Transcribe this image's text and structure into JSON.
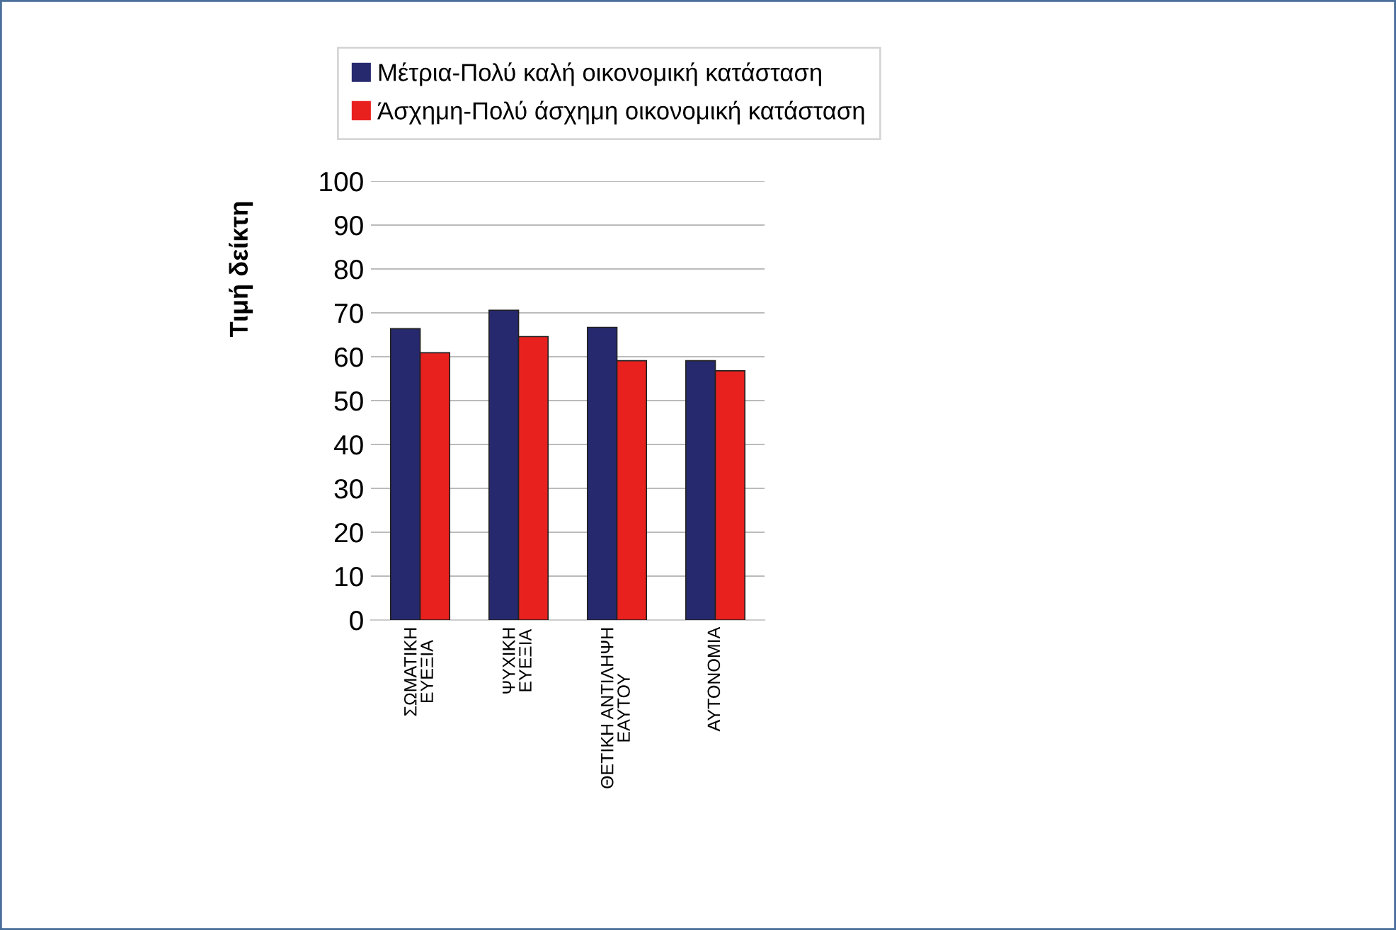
{
  "chart_data": {
    "type": "bar",
    "ylabel": "Τιμή δείκτη",
    "categories": [
      "ΣΩΜΑΤΙΚΗ\nΕΥΕΞΙΑ",
      "ΨΥΧΙΚΗ\nΕΥΕΞΙΑ",
      "ΘΕΤΙΚΗ ΑΝΤΙΛΗΨΗ\nΕΑΥΤΟΥ",
      "ΑΥΤΟΝΟΜΙΑ"
    ],
    "series": [
      {
        "name": "Μέτρια-Πολύ καλή οικονομική κατάσταση",
        "color": "#27296e",
        "values": [
          66.4,
          70.6,
          66.7,
          59.1
        ]
      },
      {
        "name": "Άσχημη-Πολύ άσχημη οικονομική κατάσταση",
        "color": "#e8211f",
        "values": [
          60.9,
          64.6,
          59.1,
          56.8
        ]
      }
    ],
    "ylim": [
      0,
      100
    ],
    "yticks": [
      0,
      10,
      20,
      30,
      40,
      50,
      60,
      70,
      80,
      90,
      100
    ],
    "grid": "y",
    "legend": "top"
  }
}
